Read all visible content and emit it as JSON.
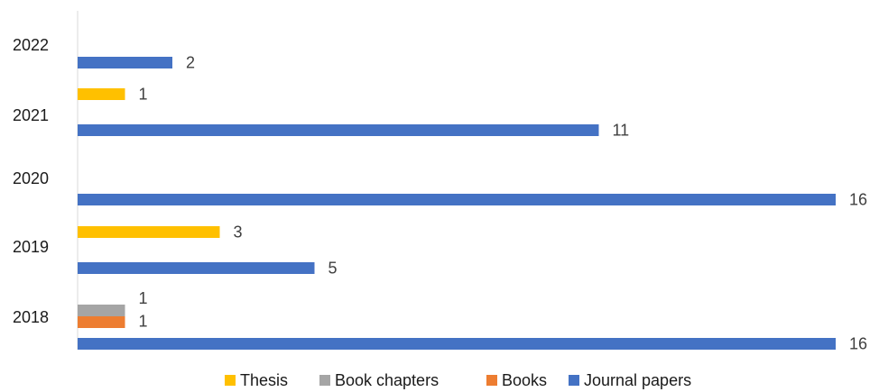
{
  "chart_data": {
    "type": "bar",
    "orientation": "horizontal",
    "categories": [
      "2018",
      "2019",
      "2020",
      "2021",
      "2022"
    ],
    "series": [
      {
        "name": "Thesis",
        "color": "#FFC000",
        "values": [
          null,
          3,
          null,
          1,
          null
        ]
      },
      {
        "name": "Book chapters",
        "color": "#A5A5A5",
        "values": [
          1,
          null,
          null,
          null,
          null
        ]
      },
      {
        "name": "Books",
        "color": "#ED7D31",
        "values": [
          1,
          null,
          null,
          null,
          null
        ]
      },
      {
        "name": "Journal papers",
        "color": "#4472C4",
        "values": [
          16,
          5,
          16,
          11,
          2
        ]
      }
    ],
    "xlim": [
      0,
      16
    ],
    "grid": false,
    "legend_position": "bottom"
  }
}
